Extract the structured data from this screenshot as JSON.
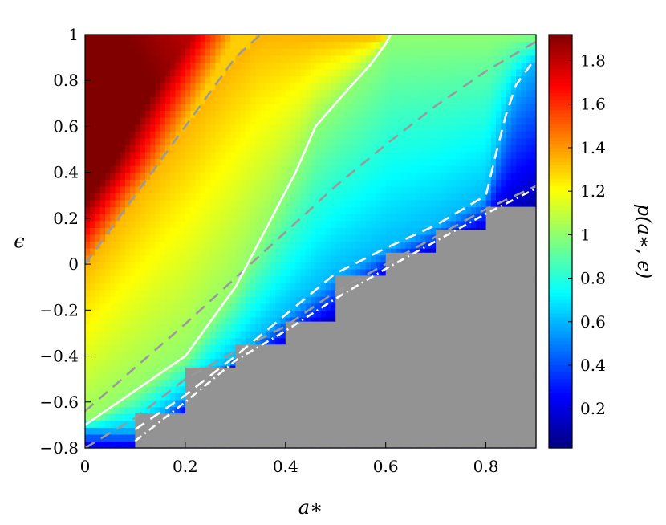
{
  "chart_data": {
    "type": "heatmap",
    "title": "",
    "xlabel": "a∗",
    "ylabel": "ϵ",
    "colorbar_label": "p(a∗, ϵ)",
    "xlim": [
      0,
      0.9
    ],
    "ylim": [
      -0.8,
      1.0
    ],
    "clim": [
      0.02,
      1.92
    ],
    "colormap": "jet",
    "x_ticks": [
      "0",
      "0.2",
      "0.4",
      "0.6",
      "0.8"
    ],
    "x_tick_values": [
      0,
      0.2,
      0.4,
      0.6,
      0.8
    ],
    "y_ticks": [
      "−0.8",
      "−0.6",
      "−0.4",
      "−0.2",
      "0",
      "0.2",
      "0.4",
      "0.6",
      "0.8",
      "1"
    ],
    "y_tick_values": [
      -0.8,
      -0.6,
      -0.4,
      -0.2,
      0,
      0.2,
      0.4,
      0.6,
      0.8,
      1.0
    ],
    "colorbar_ticks": [
      "0.2",
      "0.4",
      "0.6",
      "0.8",
      "1",
      "1.2",
      "1.4",
      "1.6",
      "1.8"
    ],
    "colorbar_tick_values": [
      0.2,
      0.4,
      0.6,
      0.8,
      1.0,
      1.2,
      1.4,
      1.6,
      1.8
    ],
    "grid": false,
    "excluded_region_color": "#939393",
    "excluded_region_boundary": {
      "a": [
        0.1,
        0.1,
        0.2,
        0.2,
        0.3,
        0.3,
        0.4,
        0.4,
        0.5,
        0.5,
        0.6,
        0.6,
        0.7,
        0.7,
        0.8,
        0.8,
        0.9
      ],
      "e": [
        -0.8,
        -0.65,
        -0.65,
        -0.45,
        -0.45,
        -0.35,
        -0.35,
        -0.25,
        -0.25,
        -0.05,
        -0.05,
        0.05,
        0.05,
        0.15,
        0.15,
        0.25,
        0.25
      ]
    },
    "heatmap_model": {
      "description_points": {
        "a": [
          0,
          0,
          0,
          0.3,
          0.6,
          0.9
        ],
        "e": [
          0.45,
          0.8,
          -0.2,
          0.2,
          0.8,
          0.3
        ],
        "value": [
          1.9,
          1.75,
          1.55,
          1.0,
          0.85,
          0.55
        ]
      }
    },
    "contours": [
      {
        "style": "dashed",
        "color": "#9a9a9a",
        "a": [
          0,
          0.1,
          0.2,
          0.3,
          0.35
        ],
        "e": [
          0.0,
          0.3,
          0.6,
          0.9,
          1.0
        ]
      },
      {
        "style": "dashed",
        "color": "#9a9a9a",
        "a": [
          0,
          0.1,
          0.2,
          0.3,
          0.4,
          0.5,
          0.6,
          0.7,
          0.8,
          0.9
        ],
        "e": [
          -0.64,
          -0.45,
          -0.26,
          -0.06,
          0.14,
          0.34,
          0.52,
          0.69,
          0.84,
          0.97
        ]
      },
      {
        "style": "dashed",
        "color": "#9a9a9a",
        "a": [
          0,
          0.1,
          0.2,
          0.3,
          0.4,
          0.5,
          0.6,
          0.7,
          0.8,
          0.9
        ],
        "e": [
          -0.8,
          -0.67,
          -0.5,
          -0.38,
          -0.27,
          -0.12,
          0.0,
          0.12,
          0.24,
          0.34
        ]
      },
      {
        "style": "solid",
        "color": "#ffffff",
        "a": [
          0,
          0.1,
          0.2,
          0.3,
          0.36,
          0.42,
          0.46,
          0.52,
          0.57,
          0.6,
          0.61
        ],
        "e": [
          -0.7,
          -0.55,
          -0.4,
          -0.1,
          0.15,
          0.4,
          0.6,
          0.75,
          0.87,
          0.96,
          1.0
        ]
      },
      {
        "style": "dashed",
        "color": "#ffffff",
        "a": [
          0.1,
          0.2,
          0.3,
          0.4,
          0.5,
          0.6,
          0.7,
          0.8,
          0.82,
          0.84,
          0.86,
          0.89
        ],
        "e": [
          -0.72,
          -0.57,
          -0.4,
          -0.22,
          -0.04,
          0.07,
          0.17,
          0.3,
          0.48,
          0.65,
          0.78,
          0.87
        ]
      },
      {
        "style": "dashdot",
        "color": "#ffffff",
        "a": [
          0.1,
          0.2,
          0.3,
          0.4,
          0.5,
          0.6,
          0.7,
          0.8,
          0.9
        ],
        "e": [
          -0.77,
          -0.6,
          -0.42,
          -0.29,
          -0.15,
          -0.02,
          0.1,
          0.22,
          0.33
        ]
      }
    ]
  }
}
